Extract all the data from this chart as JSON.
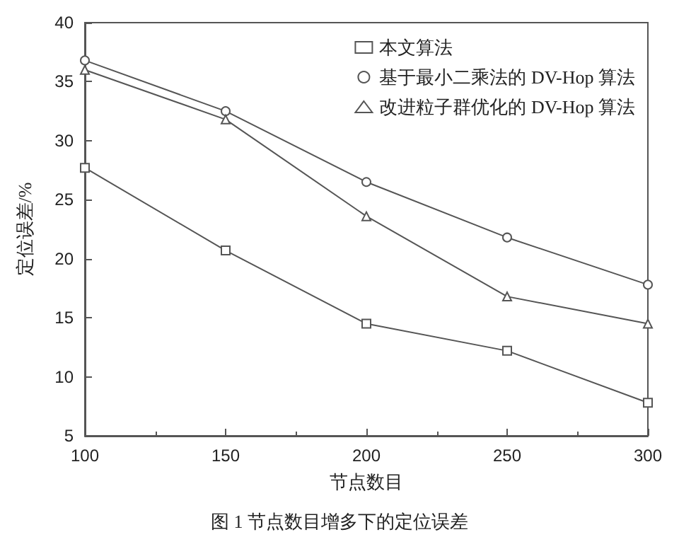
{
  "chart_data": {
    "type": "line",
    "xlabel": "节点数目",
    "ylabel": "定位误差/%",
    "annotations": [
      "图 1 节点数目增多下的定位误差"
    ],
    "x": [
      100,
      150,
      200,
      250,
      300
    ],
    "series": [
      {
        "name": "本文算法",
        "color": "#555555",
        "marker": "square",
        "values": [
          27.7,
          20.7,
          14.5,
          12.2,
          7.8
        ]
      },
      {
        "name": "基于最小二乘法的 DV-Hop 算法",
        "color": "#555555",
        "marker": "circle",
        "values": [
          36.8,
          32.5,
          26.5,
          21.8,
          17.8
        ]
      },
      {
        "name": "改进粒子群优化的 DV-Hop 算法",
        "color": "#555555",
        "marker": "triangle",
        "values": [
          36.0,
          31.8,
          23.6,
          16.8,
          14.5
        ]
      }
    ],
    "xlim": [
      100,
      300
    ],
    "xticks": [
      100,
      150,
      200,
      250,
      300
    ],
    "ylim": [
      5,
      40
    ],
    "yticks": [
      5,
      10,
      15,
      20,
      25,
      30,
      35,
      40
    ],
    "grid": false,
    "legend": "top right",
    "line_style": "solid"
  }
}
